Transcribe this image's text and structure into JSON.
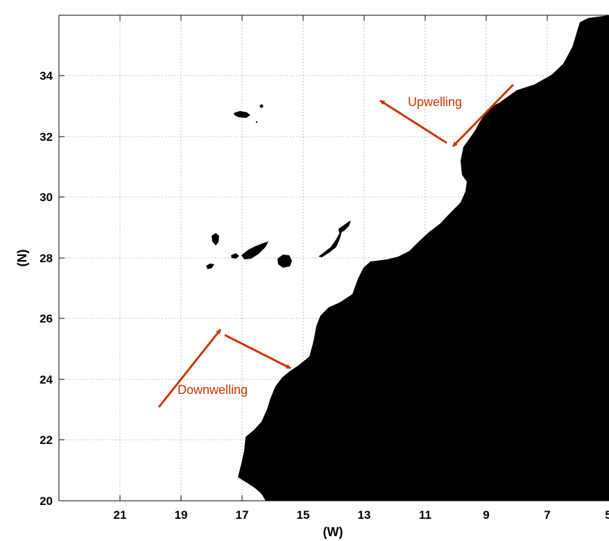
{
  "map": {
    "x_axis": {
      "title": "(W)",
      "ticks": [
        "21",
        "19",
        "17",
        "15",
        "13",
        "11",
        "9",
        "7",
        "5"
      ]
    },
    "y_axis": {
      "title": "(N)",
      "ticks": [
        "20",
        "22",
        "24",
        "26",
        "28",
        "30",
        "32",
        "34"
      ]
    },
    "annotations": {
      "upwelling": "Upwelling",
      "downwelling": "Downwelling"
    },
    "colors": {
      "land": "#000000",
      "ocean": "#ffffff",
      "arrow": "#cc3300"
    }
  }
}
